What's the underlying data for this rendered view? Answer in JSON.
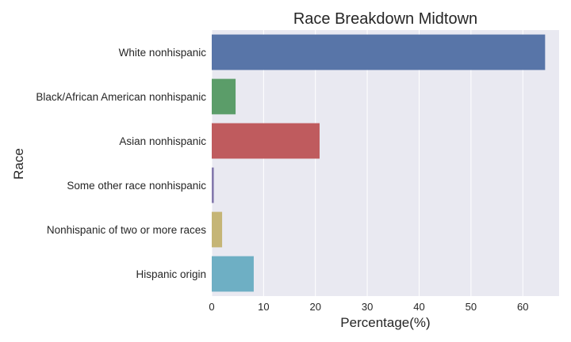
{
  "chart_data": {
    "type": "bar",
    "orientation": "horizontal",
    "title": "Race Breakdown Midtown",
    "xlabel": "Percentage(%)",
    "ylabel": "Race",
    "xlim": [
      0,
      67
    ],
    "xticks": [
      0,
      10,
      20,
      30,
      40,
      50,
      60
    ],
    "grid": true,
    "categories": [
      "White nonhispanic",
      "Black/African American nonhispanic",
      "Asian nonhispanic",
      "Some other race nonhispanic",
      "Nonhispanic of two or more races",
      "Hispanic origin"
    ],
    "values": [
      64.3,
      4.6,
      20.8,
      0.4,
      2.0,
      8.1
    ],
    "colors": [
      "#5875a8",
      "#5b9d69",
      "#bf5b5e",
      "#8479ad",
      "#c5b576",
      "#6eafc4"
    ],
    "background": "#e9e9f1",
    "grid_color": "#ffffff"
  }
}
